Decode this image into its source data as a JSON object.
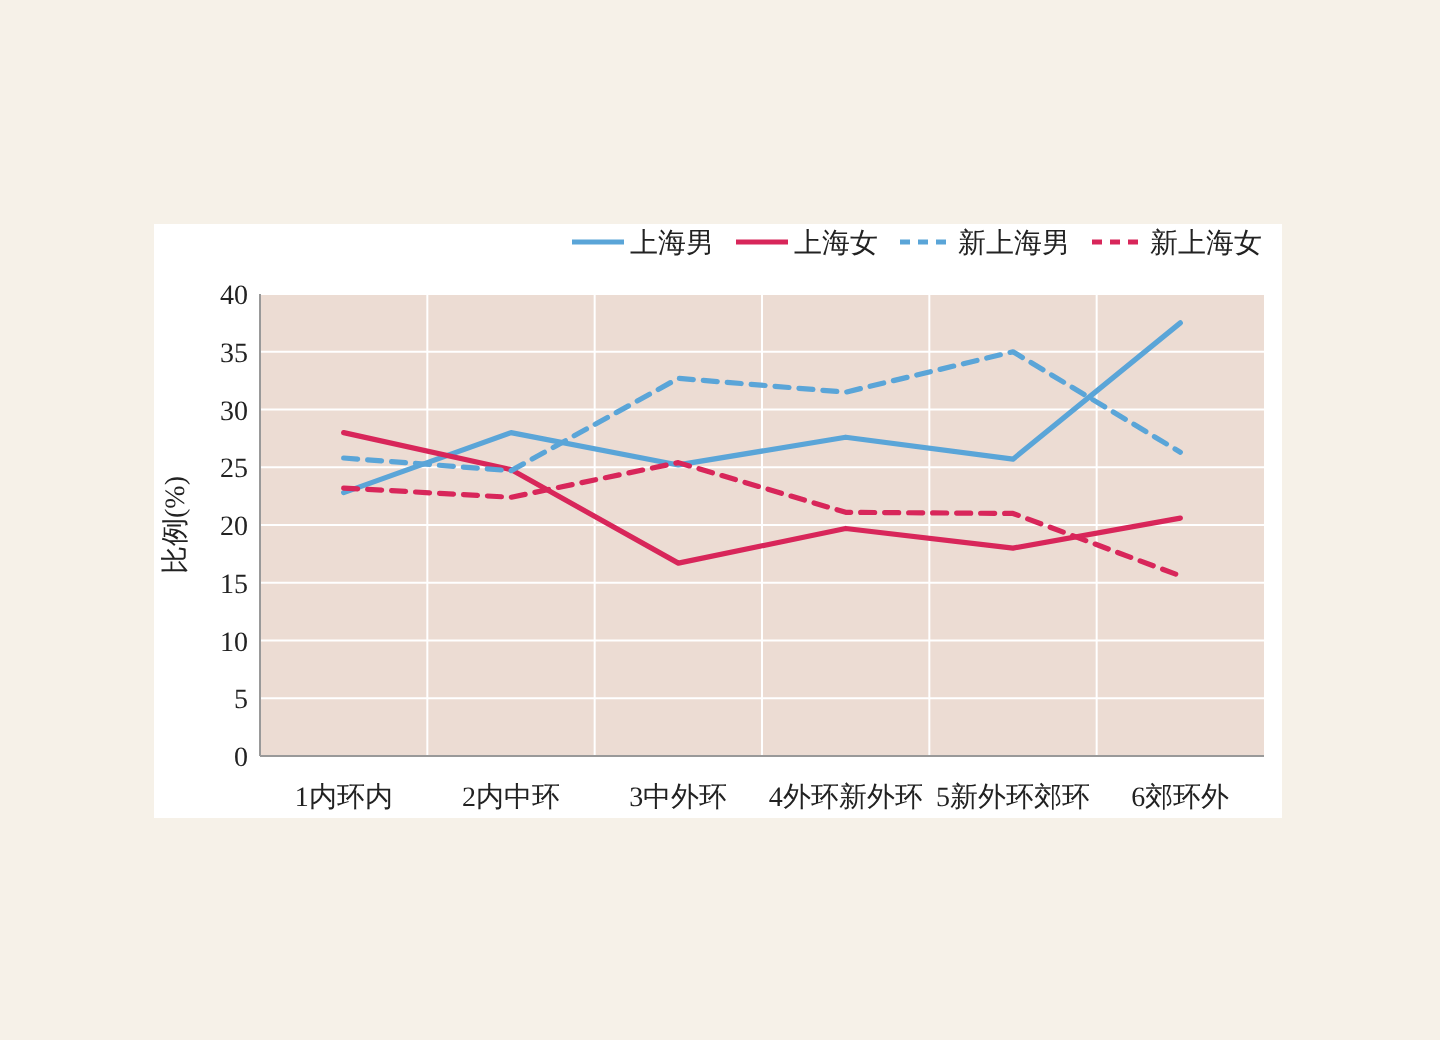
{
  "chart_data": {
    "type": "line",
    "ylabel": "比例(%)",
    "categories": [
      "1内环内",
      "2内中环",
      "3中外环",
      "4外环新外环",
      "5新外环郊环",
      "6郊环外"
    ],
    "ylim": [
      0,
      40
    ],
    "yticks": [
      0,
      5,
      10,
      15,
      20,
      25,
      30,
      35,
      40
    ],
    "grid": true,
    "legend": "top right",
    "series": [
      {
        "name": "上海男",
        "color": "#5aa5d8",
        "line_style": "solid",
        "values": [
          22.8,
          28.0,
          25.2,
          27.6,
          25.7,
          37.5
        ]
      },
      {
        "name": "上海女",
        "color": "#d8265a",
        "line_style": "solid",
        "values": [
          28.0,
          24.8,
          16.7,
          19.7,
          18.0,
          20.6
        ]
      },
      {
        "name": "新上海男",
        "color": "#5aa5d8",
        "line_style": "dashed",
        "values": [
          25.8,
          24.7,
          32.7,
          31.5,
          35.0,
          26.3
        ]
      },
      {
        "name": "新上海女",
        "color": "#d8265a",
        "line_style": "dashed",
        "values": [
          23.2,
          22.4,
          25.4,
          21.1,
          21.0,
          15.6
        ]
      }
    ]
  }
}
